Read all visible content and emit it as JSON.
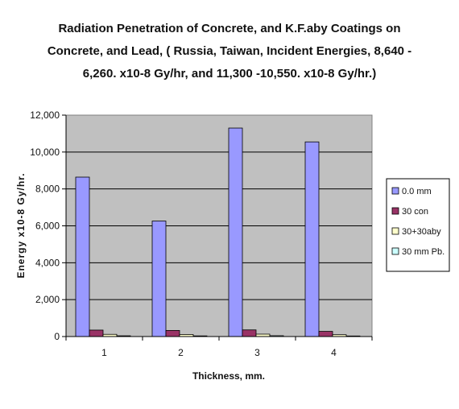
{
  "chart_data": {
    "type": "bar",
    "title_lines": [
      "Radiation Penetration of Concrete, and K.F.aby Coatings on",
      "Concrete, and Lead, ( Russia, Taiwan, Incident Energies, 8,640 -",
      "6,260. x10-8 Gy/hr, and 11,300 -10,550. x10-8 Gy/hr.)"
    ],
    "xlabel": "Thickness, mm.",
    "ylabel": "Energy x10-8 Gy/hr.",
    "categories": [
      "1",
      "2",
      "3",
      "4"
    ],
    "ylim": [
      0,
      12000
    ],
    "yticks": [
      0,
      2000,
      4000,
      6000,
      8000,
      10000,
      12000
    ],
    "ytick_labels": [
      "0",
      "2,000",
      "4,000",
      "6,000",
      "8,000",
      "10,000",
      "12,000"
    ],
    "grid": true,
    "legend_position": "right",
    "series": [
      {
        "name": "0.0 mm",
        "color": "#9999ff",
        "values": [
          8640,
          6260,
          11300,
          10550
        ]
      },
      {
        "name": "30 con",
        "color": "#993366",
        "values": [
          350,
          330,
          360,
          280
        ]
      },
      {
        "name": "30+30aby",
        "color": "#ffffcc",
        "values": [
          120,
          110,
          130,
          100
        ]
      },
      {
        "name": "30 mm Pb.",
        "color": "#ccffff",
        "values": [
          40,
          35,
          45,
          30
        ]
      }
    ]
  }
}
